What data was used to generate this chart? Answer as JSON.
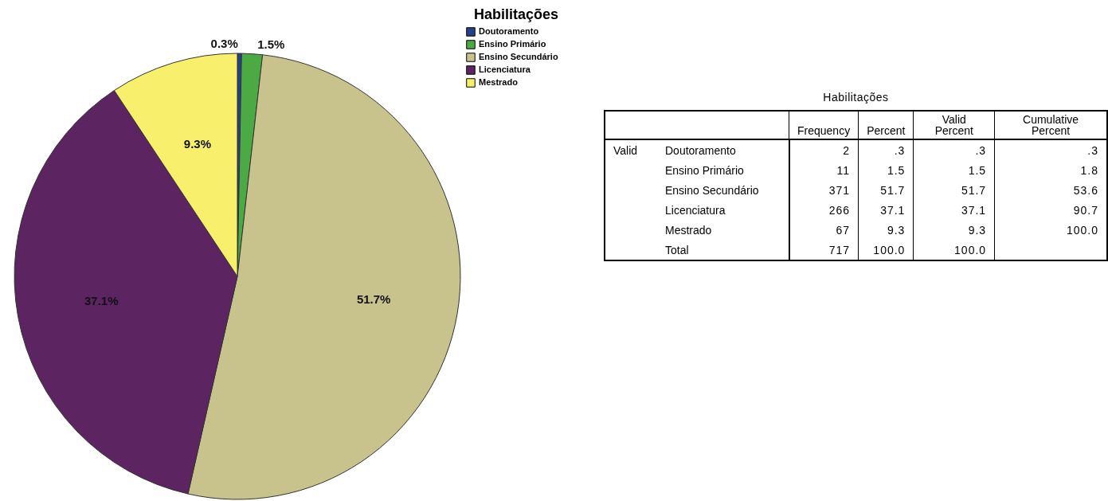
{
  "chart_data": [
    {
      "type": "pie",
      "legend_title": "Habilitações",
      "legend": "top right",
      "categories": [
        "Doutoramento",
        "Ensino Primário",
        "Ensino Secundário",
        "Licenciatura",
        "Mestrado"
      ],
      "values": [
        0.3,
        1.5,
        51.7,
        37.1,
        9.3
      ],
      "value_labels": [
        "0.3%",
        "1.5%",
        "51.7%",
        "37.1%",
        "9.3%"
      ],
      "colors": [
        "#27408b",
        "#4caa44",
        "#c8c28c",
        "#5c2461",
        "#f8f06c"
      ]
    },
    {
      "type": "other",
      "title": "Habilitações",
      "annotations": [
        "Frequency",
        "Percent",
        "Valid Percent",
        "Cumulative Percent",
        "Valid",
        "Doutoramento",
        "2",
        ".3",
        ".3",
        ".3",
        "Ensino Primário",
        "11",
        "1.5",
        "1.5",
        "1.8",
        "Ensino Secundário",
        "371",
        "51.7",
        "51.7",
        "53.6",
        "Licenciatura",
        "266",
        "37.1",
        "37.1",
        "90.7",
        "Mestrado",
        "67",
        "9.3",
        "9.3",
        "100.0",
        "Total",
        "717",
        "100.0",
        "100.0"
      ]
    }
  ]
}
